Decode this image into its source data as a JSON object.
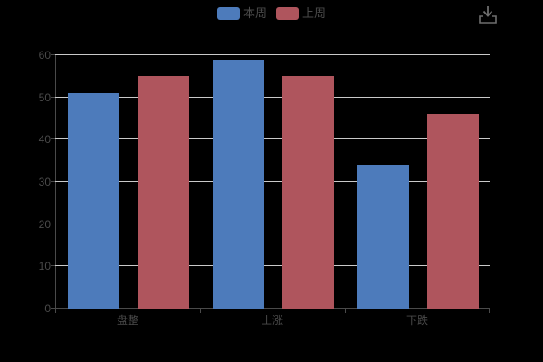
{
  "page": {
    "background_color": "#000000",
    "text_color": "#4a4a4a"
  },
  "legend": {
    "position": "top-center",
    "items": [
      {
        "label": "本周",
        "color": "#4d7bbb"
      },
      {
        "label": "上周",
        "color": "#af555d"
      }
    ]
  },
  "toolbox": {
    "save_image_icon": "download-arrow-into-tray",
    "icon_color": "#6e6e6e"
  },
  "chart_data": {
    "type": "bar",
    "title": "",
    "xlabel": "",
    "ylabel": "",
    "categories": [
      "盘整",
      "上涨",
      "下跌"
    ],
    "series": [
      {
        "name": "本周",
        "color": "#4d7bbb",
        "values": [
          51,
          59,
          34
        ]
      },
      {
        "name": "上周",
        "color": "#af555d",
        "values": [
          55,
          55,
          46
        ]
      }
    ],
    "ylim": [
      0,
      60
    ],
    "ytick_interval": 10,
    "grid": true,
    "gridline_color": "#c9c9c9",
    "axis_color": "#4a4a4a",
    "axis_label_color": "#4a4a4a",
    "legend_position": "top"
  }
}
